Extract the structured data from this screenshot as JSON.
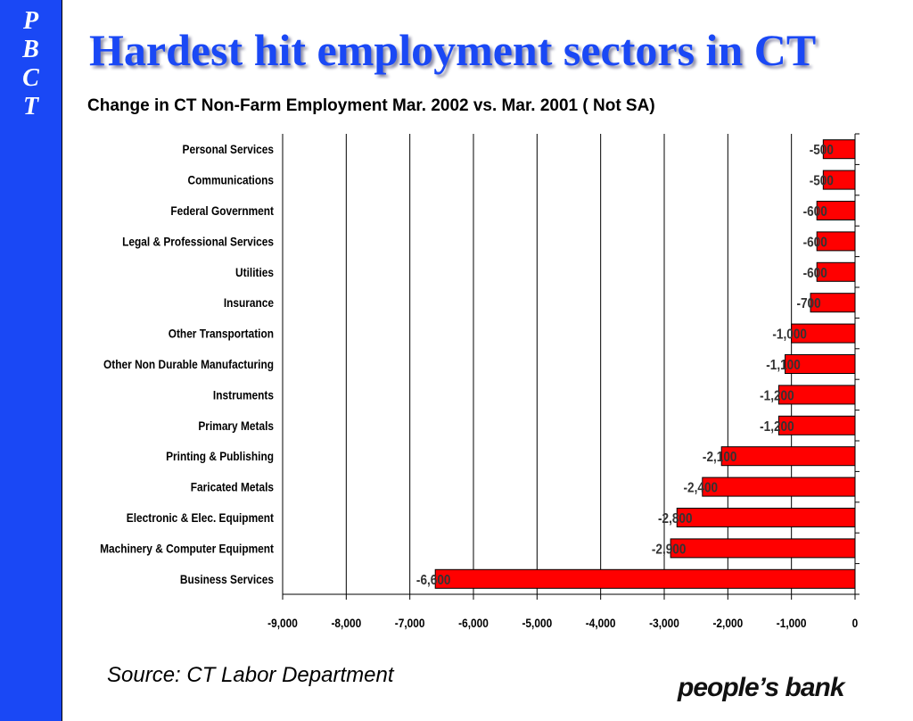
{
  "sidebar": {
    "letters": [
      "P",
      "B",
      "C",
      "T"
    ]
  },
  "header": {
    "title": "Hardest hit employment sectors in CT"
  },
  "chart_data": {
    "type": "bar",
    "orientation": "horizontal",
    "title": "Change in CT Non-Farm Employment Mar. 2002 vs. Mar. 2001 ( Not SA)",
    "categories": [
      "Personal Services",
      "Communications",
      "Federal Government",
      "Legal & Professional Services",
      "Utilities",
      "Insurance",
      "Other Transportation",
      "Other Non Durable Manufacturing",
      "Instruments",
      "Primary Metals",
      "Printing & Publishing",
      "Faricated Metals",
      "Electronic & Elec. Equipment",
      "Machinery & Computer Equipment",
      "Business Services"
    ],
    "values": [
      -500,
      -500,
      -600,
      -600,
      -600,
      -700,
      -1000,
      -1100,
      -1200,
      -1200,
      -2100,
      -2400,
      -2800,
      -2900,
      -6600
    ],
    "value_labels": [
      "-500",
      "-500",
      "-600",
      "-600",
      "-600",
      "-700",
      "-1,000",
      "-1,100",
      "-1,200",
      "-1,200",
      "-2,100",
      "-2,400",
      "-2,800",
      "-2,900",
      "-6,600"
    ],
    "xlim": [
      -9000,
      0
    ],
    "xticks": [
      -9000,
      -8000,
      -7000,
      -6000,
      -5000,
      -4000,
      -3000,
      -2000,
      -1000,
      0
    ],
    "xtick_labels": [
      "-9,000",
      "-8,000",
      "-7,000",
      "-6,000",
      "-5,000",
      "-4,000",
      "-3,000",
      "-2,000",
      "-1,000",
      "0"
    ],
    "grid": true,
    "bar_color": "#ff0000",
    "xlabel": "",
    "ylabel": ""
  },
  "footer": {
    "source": "Source: CT Labor Department",
    "logo_text": "people’s bank"
  },
  "colors": {
    "accent": "#1a48f5",
    "bar": "#ff0000"
  }
}
